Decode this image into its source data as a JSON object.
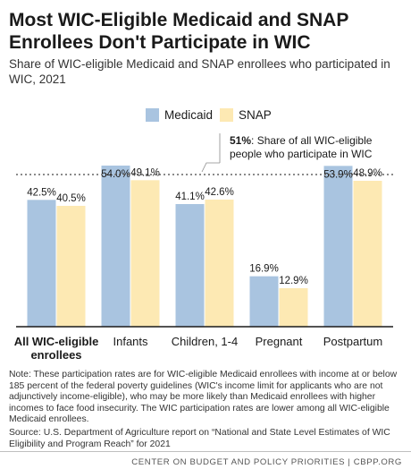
{
  "title": "Most WIC-Eligible Medicaid and SNAP Enrollees Don't Participate in WIC",
  "subtitle": "Share of WIC-eligible Medicaid and SNAP enrollees who participated in WIC, 2021",
  "note": "Note: These participation rates are for WIC-eligible Medicaid enrollees with income at or below 185 percent of the federal poverty guidelines (WIC's income limit for applicants who are not adjunctively income-eligible), who may be more likely than Medicaid enrollees with higher incomes to face food insecurity. The WIC participation rates are lower among all WIC-eligible Medicaid enrollees.",
  "source": "Source: U.S. Department of Agriculture report on “National and State Level Estimates of WIC Eligibility and Program Reach” for 2021",
  "footer": "CENTER ON BUDGET AND POLICY PRIORITIES | CBPP.ORG",
  "chart_data": {
    "type": "bar",
    "categories": [
      "All WIC-eligible enrollees",
      "Infants",
      "Children, 1-4",
      "Pregnant",
      "Postpartum"
    ],
    "series": [
      {
        "name": "Medicaid",
        "color": "#a9c4e0",
        "values": [
          42.5,
          54.0,
          41.1,
          16.9,
          53.9
        ],
        "labels": [
          "42.5%",
          "54.0%",
          "41.1%",
          "16.9%",
          "53.9%"
        ]
      },
      {
        "name": "SNAP",
        "color": "#fde9b3",
        "values": [
          40.5,
          49.1,
          42.6,
          12.9,
          48.9
        ],
        "labels": [
          "40.5%",
          "49.1%",
          "42.6%",
          "12.9%",
          "48.9%"
        ]
      }
    ],
    "category_lines": [
      [
        "All WIC-eligible",
        "enrollees"
      ],
      [
        "Infants"
      ],
      [
        "Children, 1-4"
      ],
      [
        "Pregnant"
      ],
      [
        "Postpartum"
      ]
    ],
    "reference_line": {
      "value": 51,
      "label_bold": "51%",
      "label_rest": ": Share of all WIC-eligible",
      "label_line2": "people who participate in WIC"
    },
    "ylim": [
      0,
      57
    ],
    "grid": false,
    "legend_position": "top-center",
    "baseline_color": "#1a1a1a",
    "reference_color": "#8a8a8a"
  }
}
